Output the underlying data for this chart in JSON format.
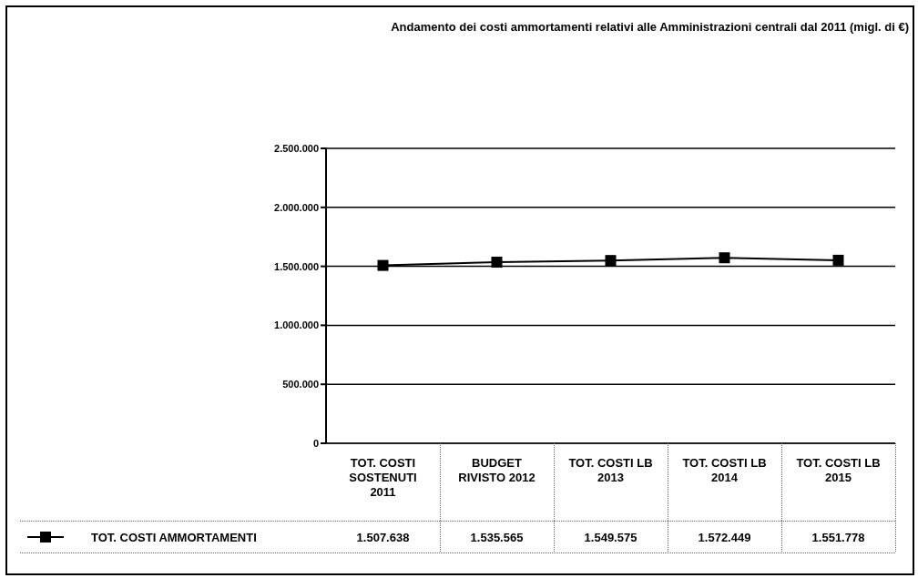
{
  "chart_data": {
    "type": "line",
    "title": "Andamento dei costi ammortamenti relativi alle Amministrazioni centrali dal 2011 (migl. di €)",
    "categories": [
      "TOT. COSTI SOSTENUTI 2011",
      "BUDGET RIVISTO 2012",
      "TOT. COSTI LB 2013",
      "TOT. COSTI LB 2014",
      "TOT. COSTI LB 2015"
    ],
    "series": [
      {
        "name": "TOT. COSTI AMMORTAMENTI",
        "color": "#000000",
        "values": [
          1507638,
          1535565,
          1549575,
          1572449,
          1551778
        ],
        "value_labels": [
          "1.507.638",
          "1.535.565",
          "1.549.575",
          "1.572.449",
          "1.551.778"
        ]
      }
    ],
    "ylim": [
      0,
      2500000
    ],
    "yticks": [
      {
        "value": 0,
        "label": "0"
      },
      {
        "value": 500000,
        "label": "500.000"
      },
      {
        "value": 1000000,
        "label": "1.000.000"
      },
      {
        "value": 1500000,
        "label": "1.500.000"
      },
      {
        "value": 2000000,
        "label": "2.000.000"
      },
      {
        "value": 2500000,
        "label": "2.500.000"
      }
    ],
    "grid": "y",
    "legend": "bottom left",
    "marker": "square",
    "line_style": "solid"
  }
}
